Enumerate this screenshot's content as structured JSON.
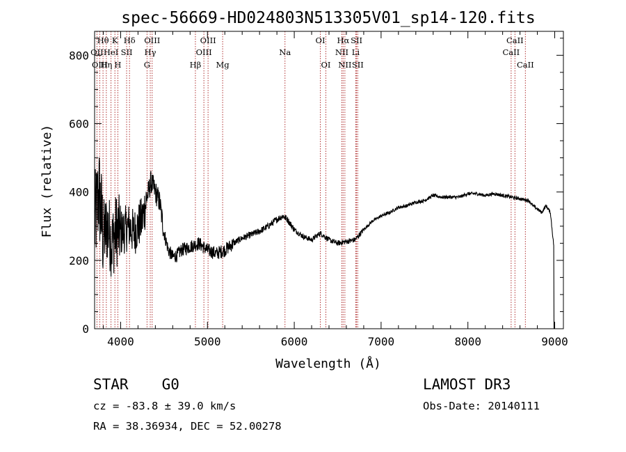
{
  "chart_data": {
    "type": "line",
    "title": "spec-56669-HD024803N513305V01_sp14-120.fits",
    "xlabel": "Wavelength (Å)",
    "ylabel": "Flux (relative)",
    "xlim": [
      3700,
      9100
    ],
    "ylim": [
      0,
      870
    ],
    "xticks": [
      4000,
      5000,
      6000,
      7000,
      8000,
      9000
    ],
    "xtick_labels": [
      "4000",
      "5000",
      "6000",
      "7000",
      "8000",
      "9000"
    ],
    "yticks": [
      0,
      200,
      400,
      600,
      800
    ],
    "ytick_labels": [
      "0",
      "200",
      "400",
      "600",
      "800"
    ],
    "series": [
      {
        "name": "spectrum",
        "x": [
          3700,
          3750,
          3800,
          3850,
          3900,
          3950,
          4000,
          4050,
          4100,
          4150,
          4200,
          4250,
          4300,
          4350,
          4400,
          4450,
          4500,
          4550,
          4600,
          4650,
          4700,
          4800,
          4900,
          5000,
          5100,
          5200,
          5300,
          5400,
          5500,
          5600,
          5700,
          5800,
          5870,
          5920,
          6000,
          6100,
          6200,
          6300,
          6400,
          6500,
          6600,
          6700,
          6800,
          6900,
          7000,
          7100,
          7200,
          7300,
          7400,
          7500,
          7600,
          7700,
          7800,
          7900,
          8000,
          8100,
          8200,
          8300,
          8400,
          8500,
          8600,
          8700,
          8750,
          8800,
          8850,
          8900,
          8950,
          8990
        ],
        "y": [
          300,
          400,
          270,
          300,
          250,
          290,
          280,
          290,
          300,
          280,
          300,
          320,
          380,
          430,
          400,
          370,
          280,
          230,
          210,
          215,
          230,
          240,
          250,
          230,
          220,
          230,
          250,
          265,
          275,
          285,
          300,
          320,
          330,
          320,
          290,
          270,
          260,
          280,
          260,
          250,
          255,
          260,
          290,
          315,
          330,
          340,
          355,
          360,
          370,
          375,
          390,
          385,
          385,
          385,
          395,
          395,
          390,
          395,
          390,
          385,
          380,
          375,
          360,
          350,
          340,
          360,
          340,
          240
        ]
      }
    ],
    "lines": [
      {
        "label": "Hθ",
        "x": 3797,
        "row": 0
      },
      {
        "label": "OII",
        "x": 3727,
        "row": 1
      },
      {
        "label": "OIII",
        "x": 3760,
        "row": 2
      },
      {
        "label": "Hη",
        "x": 3835,
        "row": 2
      },
      {
        "label": "HeI",
        "x": 3889,
        "row": 1
      },
      {
        "label": "K",
        "x": 3934,
        "row": 0
      },
      {
        "label": "H",
        "x": 3968,
        "row": 2
      },
      {
        "label": "SII",
        "x": 4069,
        "row": 1
      },
      {
        "label": "Hδ",
        "x": 4102,
        "row": 0
      },
      {
        "label": "G",
        "x": 4304,
        "row": 2
      },
      {
        "label": "Hγ",
        "x": 4341,
        "row": 1
      },
      {
        "label": "OIII",
        "x": 4363,
        "row": 0
      },
      {
        "label": "Hβ",
        "x": 4861,
        "row": 2
      },
      {
        "label": "OIII",
        "x": 4959,
        "row": 1
      },
      {
        "label": "OIII",
        "x": 5007,
        "row": 0
      },
      {
        "label": "Mg",
        "x": 5175,
        "row": 2
      },
      {
        "label": "Na",
        "x": 5893,
        "row": 1
      },
      {
        "label": "OI",
        "x": 6300,
        "row": 0
      },
      {
        "label": "OI",
        "x": 6364,
        "row": 2
      },
      {
        "label": "NII",
        "x": 6548,
        "row": 1
      },
      {
        "label": "Hα",
        "x": 6563,
        "row": 0
      },
      {
        "label": "NII",
        "x": 6583,
        "row": 2
      },
      {
        "label": "SII",
        "x": 6717,
        "row": 0
      },
      {
        "label": "Li",
        "x": 6708,
        "row": 1
      },
      {
        "label": "SII",
        "x": 6731,
        "row": 2
      },
      {
        "label": "CaII",
        "x": 8498,
        "row": 1
      },
      {
        "label": "CaII",
        "x": 8542,
        "row": 0
      },
      {
        "label": "CaII",
        "x": 8662,
        "row": 2
      }
    ]
  },
  "info": {
    "class_label": "STAR",
    "subclass": "G0",
    "survey": "LAMOST DR3",
    "redshift": "cz = -83.8 ± 39.0 km/s",
    "obs_date": "Obs-Date: 20140111",
    "coords": "RA =  38.36934, DEC =  52.00278"
  }
}
